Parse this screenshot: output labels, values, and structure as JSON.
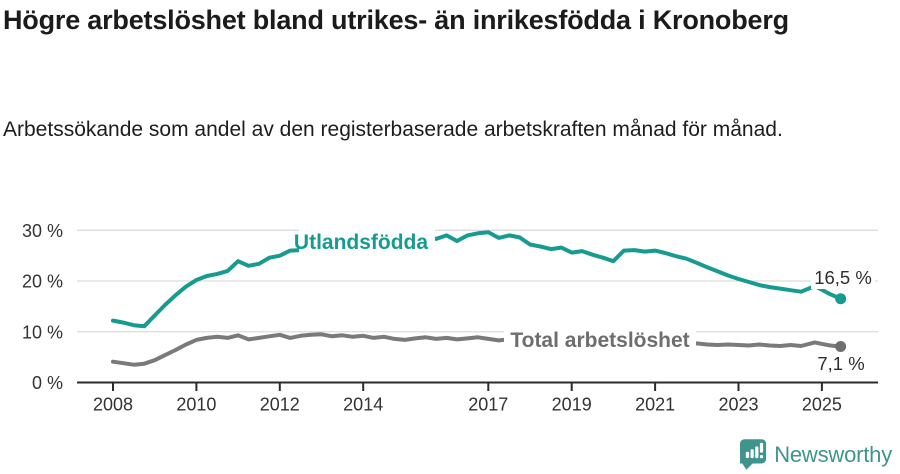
{
  "header": {
    "title": "Högre arbetslöshet bland utrikes- än inrikesfödda i Kronoberg",
    "subtitle": "Arbetssökande som andel av den registerbaserade arbetskraften månad för månad."
  },
  "chart_data": {
    "type": "line",
    "title": "Högre arbetslöshet bland utrikes- än inrikesfödda i Kronoberg",
    "xlabel": "",
    "ylabel": "",
    "grid": "horizontal",
    "legend_position": "inline-labels",
    "xlim": [
      2007.9,
      2026.3
    ],
    "ylim": [
      0,
      32
    ],
    "x_ticks": [
      {
        "value": 2008,
        "label": "2008"
      },
      {
        "value": 2010,
        "label": "2010"
      },
      {
        "value": 2012,
        "label": "2012"
      },
      {
        "value": 2014,
        "label": "2014"
      },
      {
        "value": 2017,
        "label": "2017"
      },
      {
        "value": 2019,
        "label": "2019"
      },
      {
        "value": 2021,
        "label": "2021"
      },
      {
        "value": 2023,
        "label": "2023"
      },
      {
        "value": 2025,
        "label": "2025"
      }
    ],
    "y_ticks": [
      {
        "value": 0,
        "label": "0 %"
      },
      {
        "value": 10,
        "label": "10 %"
      },
      {
        "value": 20,
        "label": "20 %"
      },
      {
        "value": 30,
        "label": "30 %"
      }
    ],
    "x": [
      2008,
      2008.25,
      2008.5,
      2008.75,
      2009,
      2009.25,
      2009.5,
      2009.75,
      2010,
      2010.25,
      2010.5,
      2010.75,
      2011,
      2011.25,
      2011.5,
      2011.75,
      2012,
      2012.25,
      2012.5,
      2012.75,
      2013,
      2013.25,
      2013.5,
      2013.75,
      2014,
      2014.25,
      2014.5,
      2014.75,
      2015,
      2015.25,
      2015.5,
      2015.75,
      2016,
      2016.25,
      2016.5,
      2016.75,
      2017,
      2017.25,
      2017.5,
      2017.75,
      2018,
      2018.25,
      2018.5,
      2018.75,
      2019,
      2019.25,
      2019.5,
      2019.75,
      2020,
      2020.25,
      2020.5,
      2020.75,
      2021,
      2021.25,
      2021.5,
      2021.75,
      2022,
      2022.25,
      2022.5,
      2022.75,
      2023,
      2023.25,
      2023.5,
      2023.75,
      2024,
      2024.25,
      2024.5,
      2024.83,
      2025,
      2025.2,
      2025.45
    ],
    "series": [
      {
        "name": "Utlandsfödda",
        "label": "Utlandsfödda",
        "end_label": "16,5 %",
        "latest_value": 16.5,
        "color": "#169B91",
        "values": [
          12.2,
          11.8,
          11.3,
          11.1,
          13.2,
          15.3,
          17.2,
          18.9,
          20.2,
          21.0,
          21.4,
          22.0,
          23.9,
          23.0,
          23.4,
          24.6,
          25.0,
          26.0,
          26.1,
          25.7,
          26.2,
          26.7,
          26.3,
          26.8,
          27.0,
          27.4,
          27.1,
          27.6,
          27.8,
          28.2,
          28.6,
          28.3,
          29.0,
          27.9,
          29.0,
          29.4,
          29.6,
          28.5,
          29.0,
          28.6,
          27.2,
          26.8,
          26.3,
          26.6,
          25.6,
          25.9,
          25.2,
          24.6,
          23.9,
          26.0,
          26.1,
          25.8,
          26.0,
          25.5,
          24.9,
          24.4,
          23.6,
          22.7,
          21.9,
          21.1,
          20.4,
          19.8,
          19.2,
          18.8,
          18.5,
          18.2,
          17.9,
          19.0,
          18.3,
          17.4,
          16.5
        ]
      },
      {
        "name": "Total arbetslöshet",
        "label": "Total arbetslöshet",
        "end_label": "7,1 %",
        "latest_value": 7.1,
        "color": "#7A7A7A",
        "label_color": "#6E6E6E",
        "values": [
          4.1,
          3.8,
          3.5,
          3.7,
          4.4,
          5.4,
          6.4,
          7.5,
          8.4,
          8.8,
          9.0,
          8.8,
          9.3,
          8.5,
          8.8,
          9.1,
          9.4,
          8.8,
          9.2,
          9.4,
          9.5,
          9.1,
          9.3,
          9.0,
          9.2,
          8.8,
          9.0,
          8.6,
          8.4,
          8.7,
          8.9,
          8.6,
          8.8,
          8.5,
          8.7,
          8.9,
          8.6,
          8.3,
          8.5,
          8.2,
          8.4,
          8.1,
          8.3,
          8.0,
          8.1,
          7.9,
          8.0,
          7.8,
          8.0,
          8.8,
          8.6,
          8.4,
          8.3,
          8.0,
          7.8,
          7.7,
          7.7,
          7.5,
          7.4,
          7.5,
          7.4,
          7.3,
          7.5,
          7.3,
          7.2,
          7.4,
          7.2,
          7.9,
          7.6,
          7.3,
          7.1
        ]
      }
    ],
    "colors": {
      "axis": "#2B2B2B",
      "gridline": "#DCDCDC",
      "tick_label": "#333333",
      "annotation": "#2E2E2E"
    }
  },
  "branding": {
    "name": "Newsworthy",
    "color": "#3F948C"
  }
}
